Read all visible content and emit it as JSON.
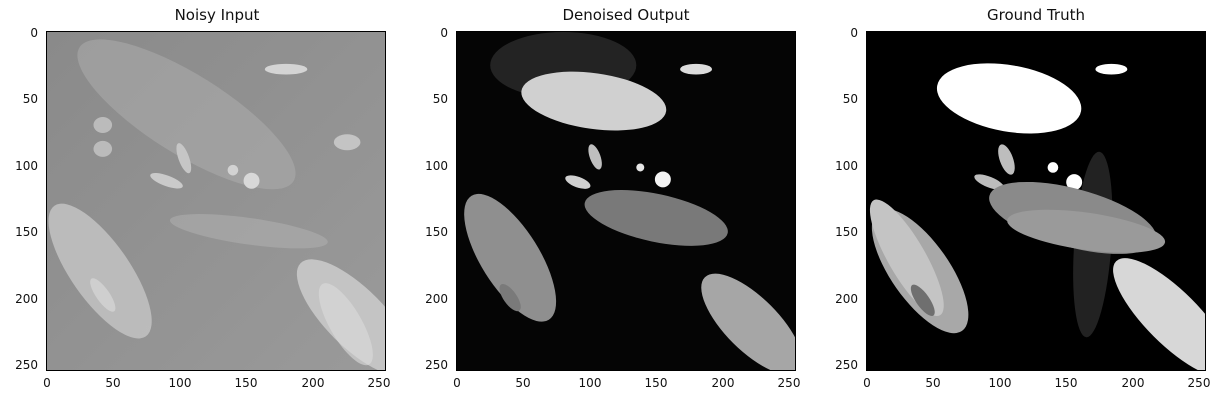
{
  "panels": [
    {
      "title": "Noisy Input"
    },
    {
      "title": "Denoised Output"
    },
    {
      "title": "Ground Truth"
    }
  ],
  "axes": {
    "y_ticks": [
      "0",
      "50",
      "100",
      "150",
      "200",
      "250"
    ],
    "x_ticks": [
      "0",
      "50",
      "100",
      "150",
      "200",
      "250"
    ]
  }
}
